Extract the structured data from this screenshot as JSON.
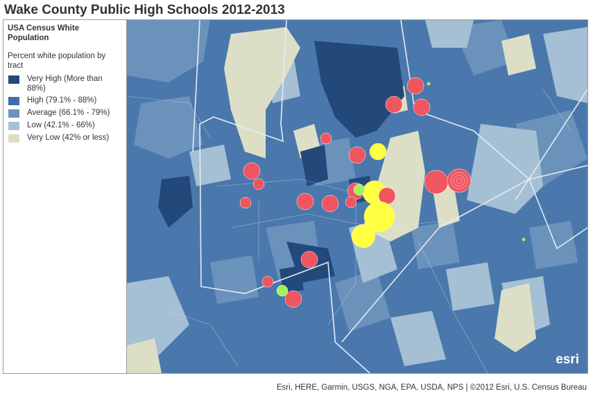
{
  "title": "Wake County Public High Schools 2012-2013",
  "legend": {
    "title": "USA Census White Population",
    "subtitle": "Percent white population by tract",
    "items": [
      {
        "label": "Very High (More than 88%)",
        "color": "#23497a"
      },
      {
        "label": "High (79.1% - 88%)",
        "color": "#3f6ea8"
      },
      {
        "label": "Average (66.1% - 79%)",
        "color": "#6b92bb"
      },
      {
        "label": "Low (42.1% - 66%)",
        "color": "#a5bfd4"
      },
      {
        "label": "Very Low (42% or less)",
        "color": "#dcdfc6"
      }
    ]
  },
  "map_colors": {
    "background": "#4a78ad",
    "boundary": "#e6ecf3",
    "school_red": "#f05560",
    "school_yellow": "#ffff44",
    "school_green": "#a4f05a"
  },
  "map_logo": "esri",
  "attribution": "Esri, HERE, Garmin, USGS, NGA, EPA, USDA, NPS | ©2012 Esri, U.S. Census Bureau"
}
